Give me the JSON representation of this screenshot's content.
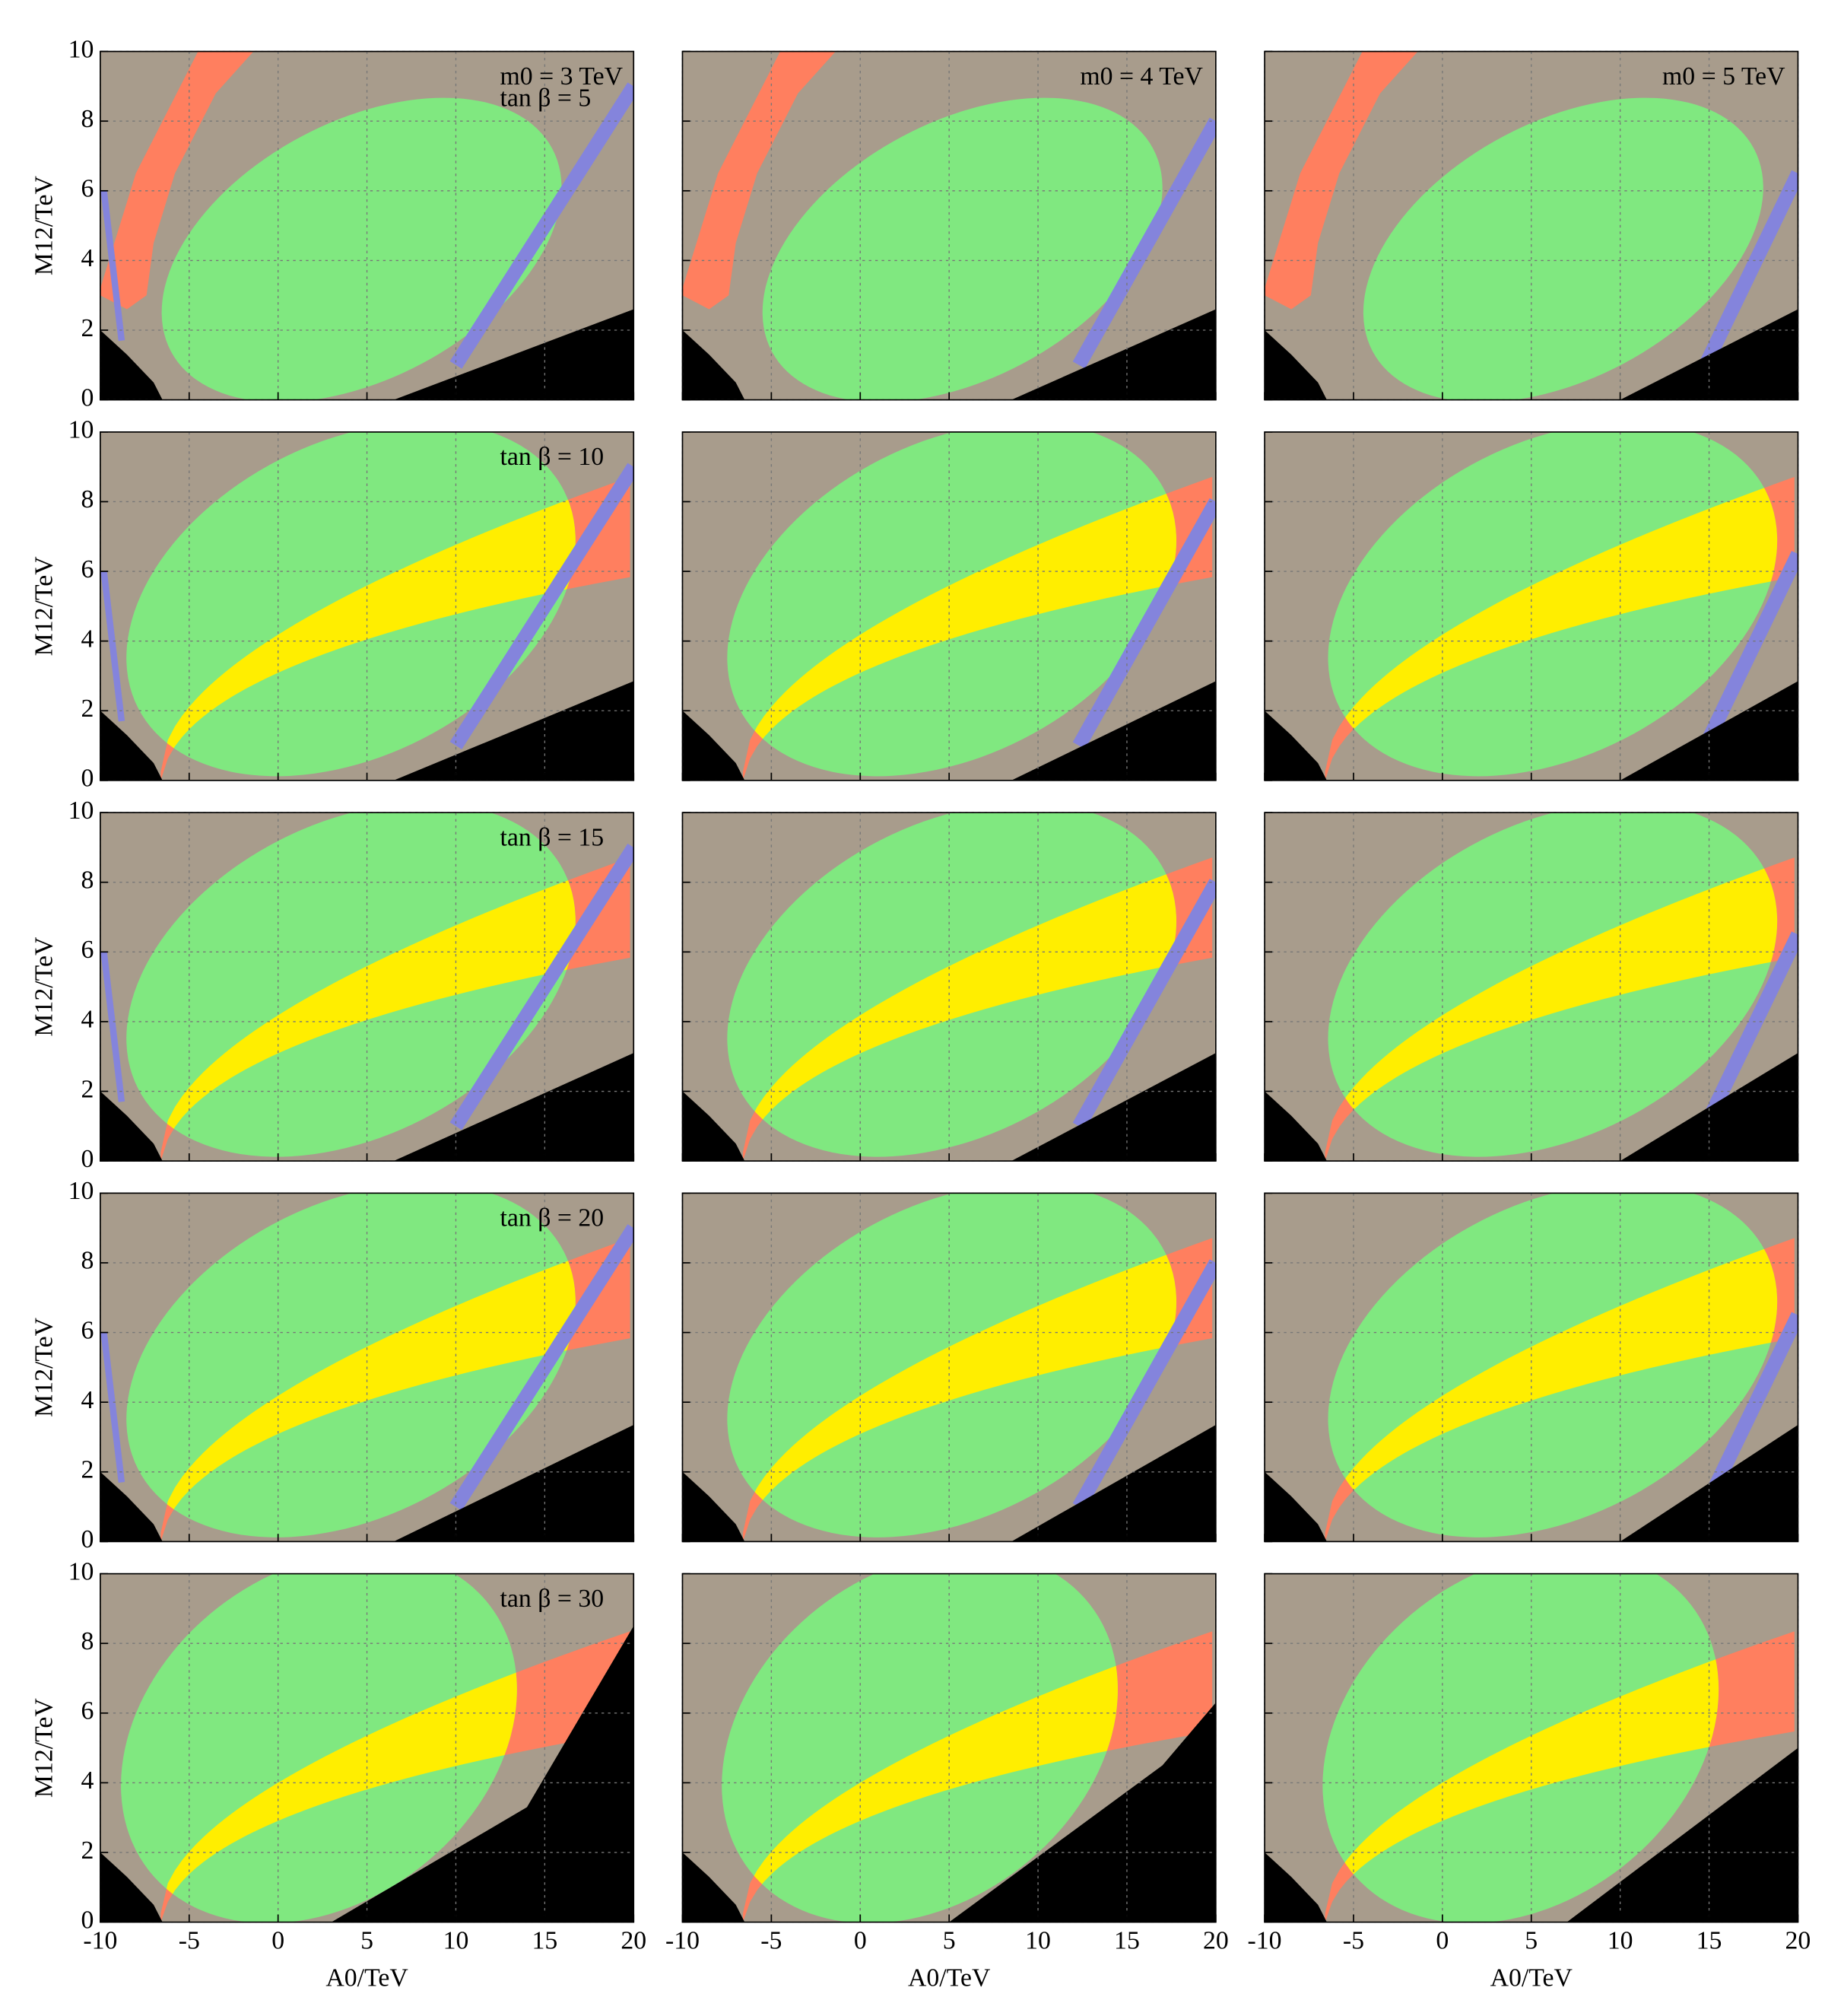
{
  "chart_data": [
    {
      "type": "region",
      "annotations": [
        "m0 = 3 TeV",
        "tan β = 5"
      ],
      "ylabel": "M12/TeV",
      "xlim": [
        -10,
        20
      ],
      "ylim": [
        0,
        10
      ],
      "xticks": [
        -10,
        -5,
        0,
        5,
        10,
        15,
        20
      ],
      "yticks": [
        0,
        2,
        4,
        6,
        8,
        10
      ]
    },
    {
      "type": "region",
      "annotations": [
        "m0 = 4 TeV"
      ],
      "xlim": [
        -10,
        20
      ],
      "ylim": [
        0,
        10
      ],
      "xticks": [
        -10,
        -5,
        0,
        5,
        10,
        15,
        20
      ],
      "yticks": [
        0,
        2,
        4,
        6,
        8,
        10
      ]
    },
    {
      "type": "region",
      "annotations": [
        "m0 = 5 TeV"
      ],
      "xlim": [
        -10,
        20
      ],
      "ylim": [
        0,
        10
      ],
      "xticks": [
        -10,
        -5,
        0,
        5,
        10,
        15,
        20
      ],
      "yticks": [
        0,
        2,
        4,
        6,
        8,
        10
      ]
    },
    {
      "type": "region",
      "annotations": [
        "tan β = 10"
      ],
      "ylabel": "M12/TeV",
      "xlim": [
        -10,
        20
      ],
      "ylim": [
        0,
        10
      ],
      "xticks": [
        -10,
        -5,
        0,
        5,
        10,
        15,
        20
      ],
      "yticks": [
        0,
        2,
        4,
        6,
        8,
        10
      ]
    },
    {
      "type": "region",
      "xlim": [
        -10,
        20
      ],
      "ylim": [
        0,
        10
      ],
      "xticks": [
        -10,
        -5,
        0,
        5,
        10,
        15,
        20
      ],
      "yticks": [
        0,
        2,
        4,
        6,
        8,
        10
      ]
    },
    {
      "type": "region",
      "xlim": [
        -10,
        20
      ],
      "ylim": [
        0,
        10
      ],
      "xticks": [
        -10,
        -5,
        0,
        5,
        10,
        15,
        20
      ],
      "yticks": [
        0,
        2,
        4,
        6,
        8,
        10
      ]
    },
    {
      "type": "region",
      "annotations": [
        "tan β = 15"
      ],
      "ylabel": "M12/TeV",
      "xlim": [
        -10,
        20
      ],
      "ylim": [
        0,
        10
      ],
      "xticks": [
        -10,
        -5,
        0,
        5,
        10,
        15,
        20
      ],
      "yticks": [
        0,
        2,
        4,
        6,
        8,
        10
      ]
    },
    {
      "type": "region",
      "xlim": [
        -10,
        20
      ],
      "ylim": [
        0,
        10
      ],
      "xticks": [
        -10,
        -5,
        0,
        5,
        10,
        15,
        20
      ],
      "yticks": [
        0,
        2,
        4,
        6,
        8,
        10
      ]
    },
    {
      "type": "region",
      "xlim": [
        -10,
        20
      ],
      "ylim": [
        0,
        10
      ],
      "xticks": [
        -10,
        -5,
        0,
        5,
        10,
        15,
        20
      ],
      "yticks": [
        0,
        2,
        4,
        6,
        8,
        10
      ]
    },
    {
      "type": "region",
      "annotations": [
        "tan β = 20"
      ],
      "ylabel": "M12/TeV",
      "xlim": [
        -10,
        20
      ],
      "ylim": [
        0,
        10
      ],
      "xticks": [
        -10,
        -5,
        0,
        5,
        10,
        15,
        20
      ],
      "yticks": [
        0,
        2,
        4,
        6,
        8,
        10
      ]
    },
    {
      "type": "region",
      "xlim": [
        -10,
        20
      ],
      "ylim": [
        0,
        10
      ],
      "xticks": [
        -10,
        -5,
        0,
        5,
        10,
        15,
        20
      ],
      "yticks": [
        0,
        2,
        4,
        6,
        8,
        10
      ]
    },
    {
      "type": "region",
      "xlim": [
        -10,
        20
      ],
      "ylim": [
        0,
        10
      ],
      "xticks": [
        -10,
        -5,
        0,
        5,
        10,
        15,
        20
      ],
      "yticks": [
        0,
        2,
        4,
        6,
        8,
        10
      ]
    },
    {
      "type": "region",
      "annotations": [
        "tan β = 30"
      ],
      "ylabel": "M12/TeV",
      "xlabel": "A0/TeV",
      "xlim": [
        -10,
        20
      ],
      "ylim": [
        0,
        10
      ],
      "xticks": [
        -10,
        -5,
        0,
        5,
        10,
        15,
        20
      ],
      "yticks": [
        0,
        2,
        4,
        6,
        8,
        10
      ]
    },
    {
      "type": "region",
      "xlabel": "A0/TeV",
      "xlim": [
        -10,
        20
      ],
      "ylim": [
        0,
        10
      ],
      "xticks": [
        -10,
        -5,
        0,
        5,
        10,
        15,
        20
      ],
      "yticks": [
        0,
        2,
        4,
        6,
        8,
        10
      ]
    },
    {
      "type": "region",
      "xlabel": "A0/TeV",
      "xlim": [
        -10,
        20
      ],
      "ylim": [
        0,
        10
      ],
      "xticks": [
        -10,
        -5,
        0,
        5,
        10,
        15,
        20
      ],
      "yticks": [
        0,
        2,
        4,
        6,
        8,
        10
      ]
    }
  ]
}
